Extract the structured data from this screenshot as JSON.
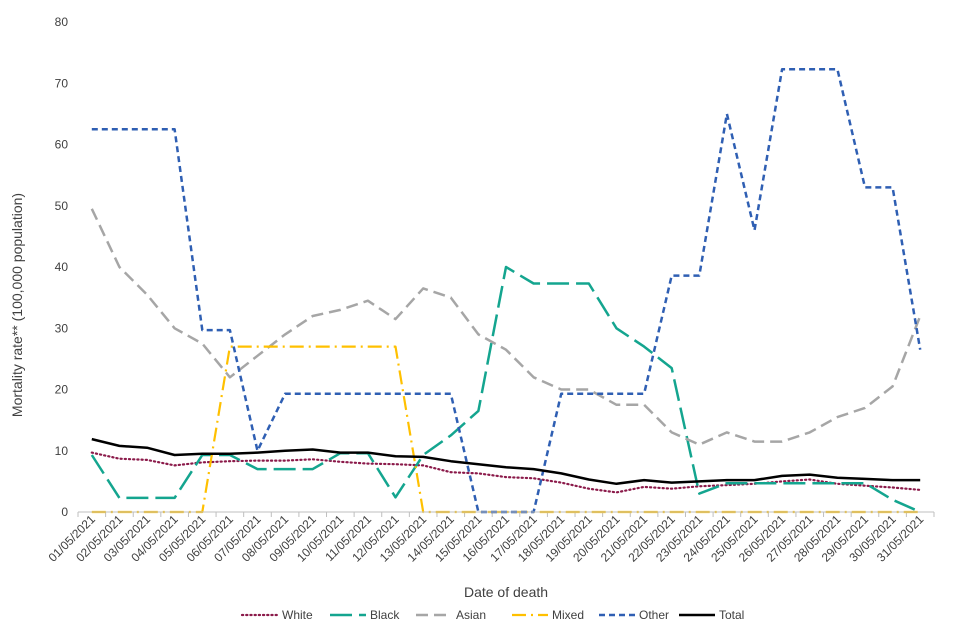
{
  "chart_data": {
    "type": "line",
    "title": "",
    "xlabel": "Date of death",
    "ylabel": "Mortality rate** (100,000 population)",
    "ylim": [
      0,
      80
    ],
    "yticks": [
      0,
      10,
      20,
      30,
      40,
      50,
      60,
      70,
      80
    ],
    "grid": false,
    "legend": "bottom",
    "categories": [
      "01/05/2021",
      "02/05/2021",
      "03/05/2021",
      "04/05/2021",
      "05/05/2021",
      "06/05/2021",
      "07/05/2021",
      "08/05/2021",
      "09/05/2021",
      "10/05/2021",
      "11/05/2021",
      "12/05/2021",
      "13/05/2021",
      "14/05/2021",
      "15/05/2021",
      "16/05/2021",
      "17/05/2021",
      "18/05/2021",
      "19/05/2021",
      "20/05/2021",
      "21/05/2021",
      "22/05/2021",
      "23/05/2021",
      "24/05/2021",
      "25/05/2021",
      "26/05/2021",
      "27/05/2021",
      "28/05/2021",
      "29/05/2021",
      "30/05/2021",
      "31/05/2021"
    ],
    "series": [
      {
        "name": "White",
        "color": "#8B1A4A",
        "dash": "dotted",
        "values": [
          9.7,
          8.7,
          8.5,
          7.6,
          8.1,
          8.3,
          8.4,
          8.4,
          8.6,
          8.2,
          7.9,
          7.8,
          7.6,
          6.5,
          6.3,
          5.7,
          5.5,
          4.8,
          3.8,
          3.2,
          4.1,
          3.8,
          4.2,
          4.4,
          4.6,
          5.0,
          5.3,
          4.6,
          4.3,
          4.0,
          3.6
        ]
      },
      {
        "name": "Black",
        "color": "#14A58F",
        "dash": "longdash",
        "values": [
          9.3,
          2.3,
          2.3,
          2.3,
          9.3,
          9.3,
          7.0,
          7.0,
          7.0,
          9.6,
          9.6,
          2.4,
          9.3,
          12.5,
          16.5,
          40.0,
          37.3,
          37.3,
          37.3,
          30.0,
          27.0,
          23.5,
          3.0,
          4.7,
          4.7,
          4.7,
          4.7,
          4.7,
          4.7,
          2.0,
          0.0
        ]
      },
      {
        "name": "Asian",
        "color": "#A6A6A6",
        "dash": "dash",
        "values": [
          49.5,
          40.0,
          35.5,
          30.0,
          27.5,
          22.0,
          25.5,
          29.0,
          32.0,
          33.0,
          34.5,
          31.5,
          36.5,
          35.0,
          29.0,
          26.5,
          22.0,
          20.0,
          20.0,
          17.5,
          17.5,
          13.0,
          11.0,
          13.0,
          11.5,
          11.5,
          13.0,
          15.5,
          17.0,
          20.5,
          32.0
        ]
      },
      {
        "name": "Mixed",
        "color": "#FFC000",
        "dash": "dashdot",
        "values": [
          0,
          0,
          0,
          0,
          0,
          27.0,
          27.0,
          27.0,
          27.0,
          27.0,
          27.0,
          27.0,
          0,
          0,
          0,
          0,
          0,
          0,
          0,
          0,
          0,
          0,
          0,
          0,
          0,
          0,
          0,
          0,
          0,
          0,
          0
        ]
      },
      {
        "name": "Other",
        "color": "#2F5FB3",
        "dash": "shortdash",
        "values": [
          62.5,
          62.5,
          62.5,
          62.5,
          29.7,
          29.7,
          10.0,
          19.3,
          19.3,
          19.3,
          19.3,
          19.3,
          19.3,
          19.3,
          0,
          0,
          0,
          19.3,
          19.3,
          19.3,
          19.3,
          38.6,
          38.6,
          65.0,
          46.0,
          72.3,
          72.3,
          72.3,
          53.0,
          53.0,
          26.5
        ]
      },
      {
        "name": "Total",
        "color": "#000000",
        "dash": "solid",
        "values": [
          11.9,
          10.8,
          10.5,
          9.3,
          9.5,
          9.5,
          9.7,
          10.0,
          10.2,
          9.7,
          9.7,
          9.1,
          9.0,
          8.3,
          7.8,
          7.3,
          7.0,
          6.3,
          5.3,
          4.6,
          5.2,
          4.8,
          5.0,
          5.2,
          5.2,
          5.9,
          6.1,
          5.6,
          5.4,
          5.2,
          5.2
        ]
      }
    ]
  }
}
